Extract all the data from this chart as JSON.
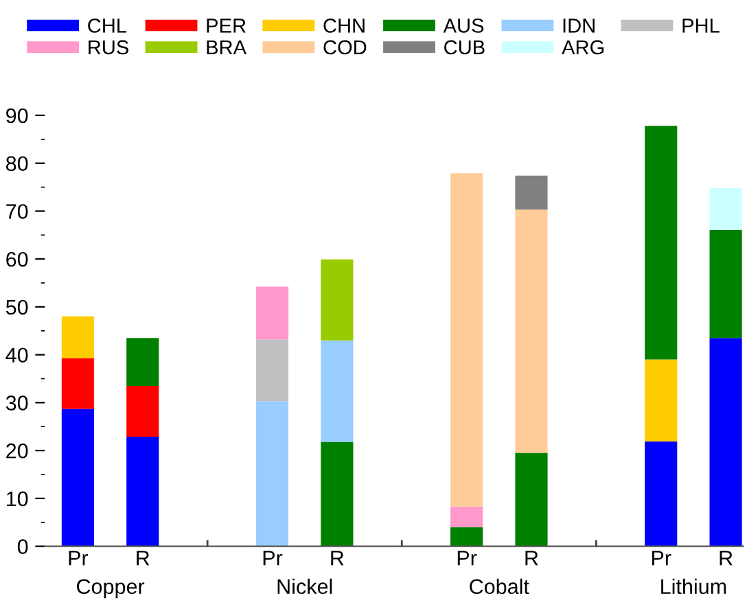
{
  "chart_data": {
    "type": "bar",
    "stacked": true,
    "categories": [
      "Pr",
      "R",
      "Pr",
      "R",
      "Pr",
      "R",
      "Pr",
      "R"
    ],
    "annotations": [
      "Copper",
      "Nickel",
      "Cobalt",
      "Lithium"
    ],
    "series": [
      {
        "name": "CHL",
        "color": "#0000ff",
        "values": [
          28.7,
          22.9,
          null,
          null,
          null,
          null,
          21.9,
          43.5
        ]
      },
      {
        "name": "PER",
        "color": "#ff0000",
        "values": [
          10.6,
          10.6,
          null,
          null,
          null,
          null,
          null,
          null
        ]
      },
      {
        "name": "CHN",
        "color": "#ffcc00",
        "values": [
          8.7,
          null,
          null,
          null,
          null,
          null,
          17.1,
          null
        ]
      },
      {
        "name": "AUS",
        "color": "#008000",
        "values": [
          null,
          10.0,
          null,
          21.8,
          4.0,
          19.5,
          48.8,
          22.6
        ]
      },
      {
        "name": "IDN",
        "color": "#99ccff",
        "values": [
          null,
          null,
          30.3,
          21.2,
          null,
          null,
          null,
          null
        ]
      },
      {
        "name": "PHL",
        "color": "#c0c0c0",
        "values": [
          null,
          null,
          12.9,
          null,
          null,
          null,
          null,
          null
        ]
      },
      {
        "name": "RUS",
        "color": "#ff99cc",
        "values": [
          null,
          null,
          11.0,
          null,
          4.3,
          null,
          null,
          null
        ]
      },
      {
        "name": "BRA",
        "color": "#99cc00",
        "values": [
          null,
          null,
          null,
          16.9,
          null,
          null,
          null,
          null
        ]
      },
      {
        "name": "COD",
        "color": "#ffcc99",
        "values": [
          null,
          null,
          null,
          null,
          69.6,
          50.8,
          null,
          null
        ]
      },
      {
        "name": "CUB",
        "color": "#808080",
        "values": [
          null,
          null,
          null,
          null,
          null,
          7.1,
          null,
          null
        ]
      },
      {
        "name": "ARG",
        "color": "#ccffff",
        "values": [
          null,
          null,
          null,
          null,
          null,
          null,
          null,
          8.7
        ]
      }
    ],
    "ylim": [
      0,
      90
    ],
    "yticks": [
      0,
      10,
      20,
      30,
      40,
      50,
      60,
      70,
      80,
      90
    ],
    "grid": false,
    "legend": "top"
  }
}
